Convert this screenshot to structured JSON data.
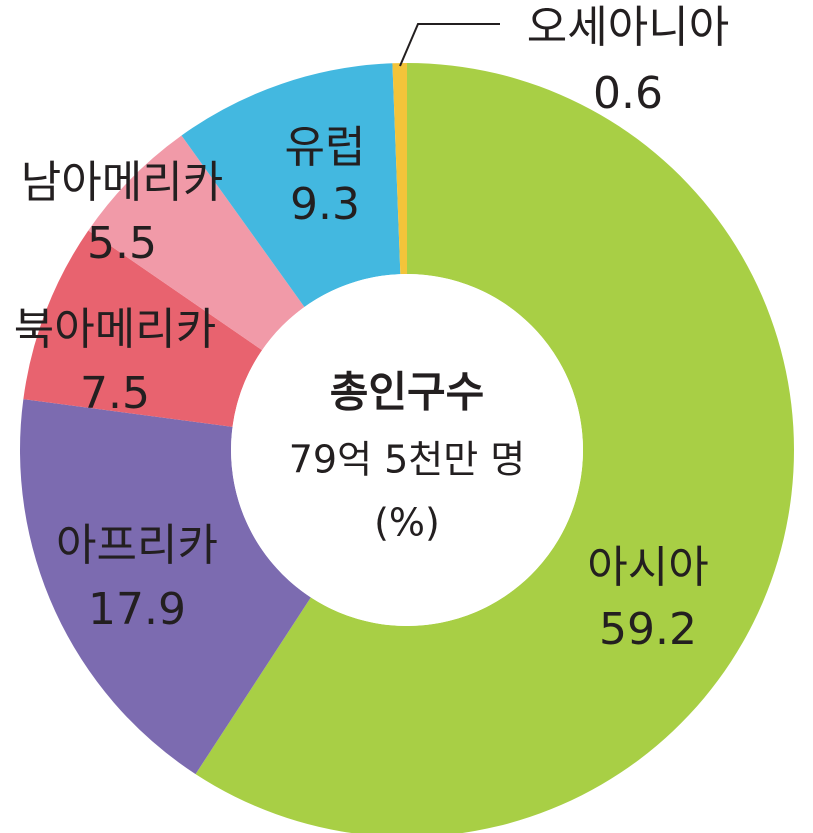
{
  "chart_data": {
    "type": "donut",
    "center_title": "총인구수",
    "center_subtitle": "79억 5천만 명",
    "center_unit": "(%)",
    "categories": [
      "아시아",
      "아프리카",
      "북아메리카",
      "남아메리카",
      "유럽",
      "오세아니아"
    ],
    "values": [
      59.2,
      17.9,
      7.5,
      5.5,
      9.3,
      0.6
    ],
    "colors": [
      "#a8cf45",
      "#7c6bb0",
      "#e8636f",
      "#f19aa8",
      "#43b8e0",
      "#f3c43a"
    ]
  }
}
